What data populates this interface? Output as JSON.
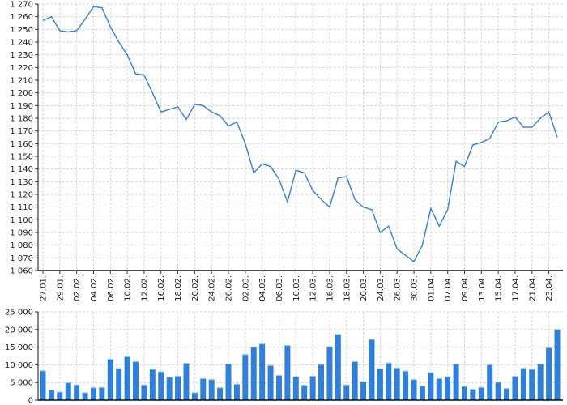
{
  "chart_data": [
    {
      "type": "line",
      "ylim": [
        1060,
        1270
      ],
      "ytick_step": 10,
      "grid": true,
      "color": "#3a87d9",
      "tick_labels": [
        "27.01.",
        "29.01.",
        "02.02.",
        "04.02.",
        "06.02.",
        "10.02.",
        "12.02.",
        "16.02.",
        "18.02.",
        "20.02.",
        "24.02.",
        "26.02.",
        "02.03.",
        "04.03.",
        "06.03.",
        "10.03.",
        "12.03.",
        "16.03.",
        "18.03.",
        "20.03.",
        "24.03.",
        "26.03.",
        "30.03.",
        "01.04.",
        "07.04.",
        "09.04.",
        "13.04.",
        "15.04.",
        "17.04.",
        "21.04.",
        "23.04."
      ],
      "values": [
        1257,
        1260,
        1249,
        1248,
        1249,
        1258,
        1268,
        1267,
        1252,
        1240,
        1230,
        1215,
        1214,
        1200,
        1185,
        1187,
        1189,
        1179,
        1191,
        1190,
        1185,
        1182,
        1174,
        1177,
        1160,
        1137,
        1144,
        1142,
        1132,
        1114,
        1139,
        1137,
        1123,
        1116,
        1110,
        1133,
        1134,
        1116,
        1110,
        1108,
        1090,
        1095,
        1077,
        1072,
        1067,
        1080,
        1109,
        1095,
        1108,
        1146,
        1142,
        1159,
        1161,
        1164,
        1177,
        1178,
        1181,
        1173,
        1173,
        1180,
        1185,
        1165
      ]
    },
    {
      "type": "bar",
      "ylim": [
        0,
        25000
      ],
      "ytick_step": 5000,
      "grid": true,
      "color": "#2f80d8",
      "values": [
        8400,
        3000,
        2400,
        5000,
        4400,
        2200,
        3600,
        3700,
        11700,
        9000,
        12400,
        11000,
        4400,
        8800,
        8100,
        6600,
        6900,
        10500,
        2200,
        6200,
        5900,
        3600,
        10300,
        4600,
        13000,
        15100,
        16000,
        9900,
        7100,
        15600,
        6700,
        4300,
        6900,
        10200,
        15200,
        18700,
        4400,
        11000,
        5300,
        17300,
        9000,
        10600,
        9200,
        8300,
        5900,
        4100,
        7900,
        6200,
        6700,
        10300,
        4000,
        3200,
        3700,
        10100,
        5200,
        3400,
        6800,
        9100,
        8800,
        10300,
        14900,
        20100
      ]
    }
  ]
}
